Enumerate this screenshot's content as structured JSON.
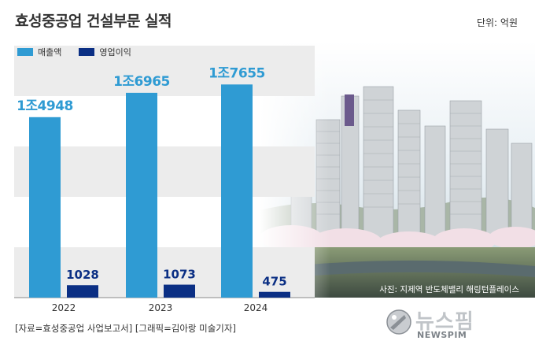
{
  "header": {
    "title": "효성중공업 건설부문 실적",
    "unit": "단위: 억원"
  },
  "chart_data": {
    "type": "bar",
    "categories": [
      "2022",
      "2023",
      "2024"
    ],
    "series": [
      {
        "name": "매출액",
        "values": [
          14948,
          16965,
          17655
        ],
        "labels": [
          "1조4948",
          "1조6965",
          "1조7655"
        ],
        "color": "#2f9bd3"
      },
      {
        "name": "영업이익",
        "values": [
          1028,
          1073,
          475
        ],
        "labels": [
          "1028",
          "1073",
          "475"
        ],
        "color": "#0b2f84"
      }
    ],
    "ylim": [
      0,
      21000
    ],
    "grid": "alternating bands",
    "legend": "top-left"
  },
  "photo": {
    "caption": "사진: 지제역 반도체밸리 해링턴플레이스"
  },
  "footer": {
    "source": "[자료=효성중공업 사업보고서] [그래픽=김아랑 미술기자]"
  },
  "logo": {
    "name": "뉴스핌",
    "sub": "NEWSPIM"
  },
  "colors": {
    "band": "#ececec",
    "label": "#2f9bd3",
    "label_dark": "#0b2f84"
  }
}
